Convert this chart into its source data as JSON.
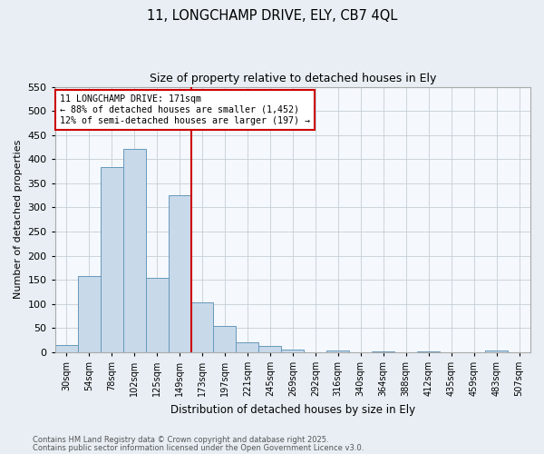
{
  "title1": "11, LONGCHAMP DRIVE, ELY, CB7 4QL",
  "title2": "Size of property relative to detached houses in Ely",
  "xlabel": "Distribution of detached houses by size in Ely",
  "ylabel": "Number of detached properties",
  "bin_labels": [
    "30sqm",
    "54sqm",
    "78sqm",
    "102sqm",
    "125sqm",
    "149sqm",
    "173sqm",
    "197sqm",
    "221sqm",
    "245sqm",
    "269sqm",
    "292sqm",
    "316sqm",
    "340sqm",
    "364sqm",
    "388sqm",
    "412sqm",
    "435sqm",
    "459sqm",
    "483sqm",
    "507sqm"
  ],
  "bar_heights": [
    15,
    157,
    383,
    422,
    153,
    325,
    103,
    55,
    20,
    12,
    5,
    0,
    4,
    0,
    2,
    0,
    1,
    0,
    0,
    3,
    0
  ],
  "bar_color": "#c8d9ea",
  "bar_edge_color": "#6699bb",
  "vline_x": 6,
  "vline_color": "#cc0000",
  "ylim": [
    0,
    550
  ],
  "yticks": [
    0,
    50,
    100,
    150,
    200,
    250,
    300,
    350,
    400,
    450,
    500,
    550
  ],
  "annotation_lines": [
    "11 LONGCHAMP DRIVE: 171sqm",
    "← 88% of detached houses are smaller (1,452)",
    "12% of semi-detached houses are larger (197) →"
  ],
  "annotation_box_color": "white",
  "annotation_box_edge": "#cc0000",
  "footnote1": "Contains HM Land Registry data © Crown copyright and database right 2025.",
  "footnote2": "Contains public sector information licensed under the Open Government Licence v3.0.",
  "bg_color": "#e8eef4",
  "plot_bg_color": "#f5f8fc",
  "grid_color": "#c5cfd8"
}
